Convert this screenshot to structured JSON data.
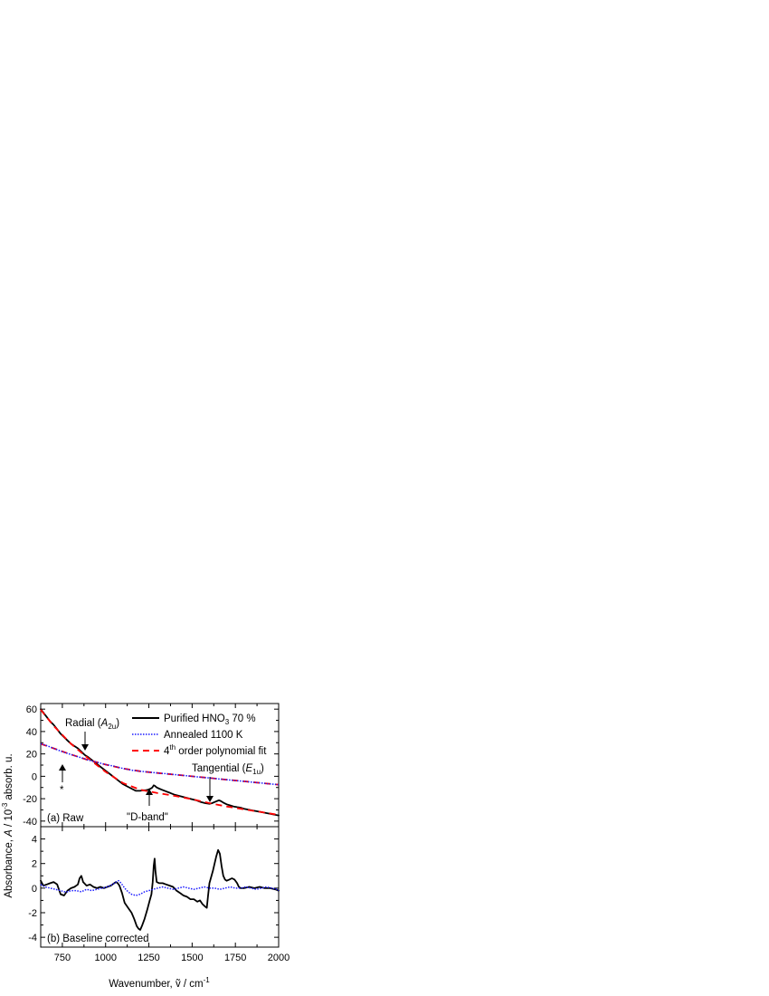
{
  "chart_data": [
    {
      "type": "line",
      "panel_label": "(a) Raw",
      "xlim": [
        625,
        2000
      ],
      "ylim": [
        -45,
        65
      ],
      "xticks": [
        750,
        1000,
        1250,
        1500,
        1750,
        2000
      ],
      "yticks": [
        -40,
        -20,
        0,
        20,
        40,
        60
      ],
      "legend_placement": "top-right",
      "series": [
        {
          "name": "Purified HNO₃ 70 %",
          "style": "solid",
          "color": "#000000",
          "x": [
            625,
            650,
            680,
            700,
            720,
            740,
            760,
            780,
            800,
            820,
            840,
            860,
            880,
            900,
            925,
            950,
            975,
            1000,
            1025,
            1050,
            1075,
            1100,
            1125,
            1150,
            1175,
            1200,
            1215,
            1230,
            1245,
            1260,
            1270,
            1278,
            1285,
            1295,
            1310,
            1325,
            1350,
            1375,
            1400,
            1425,
            1450,
            1475,
            1500,
            1525,
            1550,
            1575,
            1600,
            1615,
            1630,
            1645,
            1655,
            1665,
            1680,
            1700,
            1720,
            1740,
            1760,
            1780,
            1800,
            1850,
            1900,
            1950,
            2000
          ],
          "y": [
            60,
            55,
            49,
            46,
            42,
            38,
            35,
            32,
            29,
            27,
            25,
            22,
            19,
            17,
            14,
            11,
            8,
            5,
            2,
            -1,
            -4,
            -7,
            -9,
            -11,
            -13,
            -13,
            -12.5,
            -12.5,
            -12,
            -11,
            -10,
            -8,
            -8.5,
            -10,
            -11,
            -12,
            -13.5,
            -15,
            -16.5,
            -17.5,
            -18.5,
            -19.5,
            -20.5,
            -21.5,
            -23,
            -24,
            -24.5,
            -24,
            -23,
            -22,
            -21.5,
            -22,
            -23.5,
            -25,
            -26,
            -27,
            -27.5,
            -28,
            -29,
            -30.5,
            -32,
            -33.5,
            -35
          ]
        },
        {
          "name": "Annealed 1100 K",
          "style": "dotted",
          "color": "#1a1aff",
          "x": [
            625,
            650,
            700,
            750,
            800,
            850,
            900,
            950,
            1000,
            1050,
            1075,
            1100,
            1150,
            1200,
            1250,
            1300,
            1350,
            1400,
            1450,
            1500,
            1550,
            1600,
            1650,
            1700,
            1750,
            1800,
            1850,
            1900,
            1950,
            2000
          ],
          "y": [
            29,
            28,
            25,
            22,
            19.5,
            17,
            14.5,
            12.5,
            10.5,
            9,
            8,
            7,
            5.5,
            4.5,
            3.8,
            3,
            2.3,
            1.5,
            0.8,
            0,
            -0.8,
            -1.5,
            -2.3,
            -3,
            -3.8,
            -4.5,
            -5.3,
            -6,
            -6.8,
            -7.5
          ]
        },
        {
          "name": "4th order polynomial fit",
          "style": "dashed",
          "color": "#ff0000",
          "x": [
            625,
            700,
            800,
            900,
            1000,
            1100,
            1200,
            1300,
            1400,
            1500,
            1600,
            1700,
            1800,
            1900,
            2000
          ],
          "y": [
            59.5,
            45,
            29,
            16,
            4,
            -6,
            -12,
            -15,
            -17.5,
            -20.5,
            -24,
            -27,
            -29.5,
            -32,
            -34.5
          ]
        },
        {
          "name": "4th order polynomial fit",
          "style": "dashed",
          "color": "#ff0000",
          "x": [
            625,
            700,
            800,
            900,
            1000,
            1100,
            1200,
            1300,
            1400,
            1500,
            1600,
            1700,
            1800,
            1900,
            2000
          ],
          "y": [
            29,
            25,
            19.5,
            14.5,
            10.5,
            7,
            4.5,
            3,
            1.5,
            0,
            -1.5,
            -3,
            -4.5,
            -6,
            -7.5
          ]
        }
      ],
      "annotations": [
        {
          "text": "Radial (",
          "italic": "A",
          "sub": "2u",
          "close": ")",
          "arrow_x": 855,
          "arrow_y": 24
        },
        {
          "text": "*",
          "arrow_x": 740,
          "arrow_y": 36
        },
        {
          "text": "\"D-band\"",
          "arrow_x": 1250,
          "arrow_y": -11
        },
        {
          "text": "Tangential (",
          "italic": "E",
          "sub": "1u",
          "close": ")",
          "arrow_x": 1610,
          "arrow_y": -22
        }
      ]
    },
    {
      "type": "line",
      "panel_label": "(b) Baseline corrected",
      "xlim": [
        625,
        2000
      ],
      "ylim": [
        -4.8,
        5.0
      ],
      "xticks": [
        750,
        1000,
        1250,
        1500,
        1750,
        2000
      ],
      "yticks": [
        -4,
        -2,
        0,
        2,
        4
      ],
      "series": [
        {
          "name": "Purified HNO₃ 70 %",
          "style": "solid",
          "color": "#000000",
          "x": [
            625,
            640,
            660,
            680,
            700,
            720,
            740,
            760,
            780,
            800,
            820,
            840,
            850,
            860,
            870,
            890,
            910,
            930,
            950,
            970,
            990,
            1010,
            1030,
            1050,
            1060,
            1070,
            1080,
            1095,
            1110,
            1130,
            1150,
            1165,
            1180,
            1190,
            1200,
            1212,
            1225,
            1240,
            1255,
            1265,
            1272,
            1278,
            1283,
            1288,
            1295,
            1310,
            1330,
            1350,
            1370,
            1390,
            1410,
            1430,
            1450,
            1470,
            1490,
            1510,
            1530,
            1545,
            1560,
            1575,
            1585,
            1592,
            1600,
            1610,
            1620,
            1630,
            1640,
            1650,
            1660,
            1670,
            1680,
            1690,
            1700,
            1715,
            1730,
            1745,
            1760,
            1770,
            1780,
            1800,
            1830,
            1860,
            1890,
            1920,
            1950,
            1980,
            2000
          ],
          "y": [
            0.6,
            0.2,
            0.3,
            0.4,
            0.5,
            0.3,
            -0.5,
            -0.6,
            -0.2,
            0.0,
            0.1,
            0.3,
            0.8,
            1.0,
            0.5,
            0.2,
            0.3,
            0.1,
            0.0,
            0.1,
            0.0,
            0.1,
            0.2,
            0.4,
            0.5,
            0.4,
            0.2,
            -0.4,
            -1.2,
            -1.6,
            -2.0,
            -2.5,
            -3.1,
            -3.3,
            -3.4,
            -3.0,
            -2.5,
            -1.8,
            -1.0,
            -0.5,
            0.5,
            1.8,
            2.4,
            1.4,
            0.5,
            0.4,
            0.4,
            0.3,
            0.2,
            0.1,
            -0.2,
            -0.4,
            -0.6,
            -0.7,
            -0.9,
            -0.9,
            -1.1,
            -1.0,
            -1.3,
            -1.5,
            -1.6,
            -0.6,
            0.4,
            0.9,
            1.4,
            2.0,
            2.6,
            3.1,
            2.8,
            1.8,
            1.0,
            0.7,
            0.6,
            0.7,
            0.8,
            0.7,
            0.4,
            0.1,
            0.0,
            0.0,
            0.1,
            0.0,
            0.1,
            0.0,
            0.0,
            -0.1,
            -0.2
          ]
        },
        {
          "name": "Annealed 1100 K",
          "style": "dotted",
          "color": "#1a1aff",
          "x": [
            625,
            650,
            680,
            710,
            740,
            760,
            780,
            800,
            830,
            860,
            890,
            920,
            950,
            980,
            1010,
            1040,
            1060,
            1075,
            1090,
            1110,
            1130,
            1150,
            1175,
            1200,
            1225,
            1250,
            1275,
            1300,
            1330,
            1360,
            1390,
            1420,
            1450,
            1480,
            1510,
            1540,
            1570,
            1600,
            1630,
            1660,
            1690,
            1720,
            1750,
            1780,
            1810,
            1840,
            1870,
            1900,
            1930,
            1960,
            1990,
            2000
          ],
          "y": [
            0.3,
            0.1,
            0.0,
            -0.1,
            -0.2,
            -0.3,
            -0.3,
            -0.2,
            -0.2,
            -0.3,
            -0.1,
            -0.2,
            -0.1,
            0.0,
            0.1,
            0.3,
            0.5,
            0.6,
            0.4,
            0.0,
            -0.3,
            -0.5,
            -0.6,
            -0.5,
            -0.3,
            -0.2,
            -0.1,
            0.0,
            0.1,
            0.0,
            -0.1,
            0.0,
            0.1,
            0.0,
            -0.1,
            0.0,
            0.1,
            0.0,
            0.0,
            -0.1,
            0.0,
            0.1,
            0.0,
            0.0,
            0.1,
            0.0,
            -0.1,
            0.0,
            0.1,
            0.0,
            -0.1,
            -0.2
          ]
        }
      ]
    }
  ],
  "axes": {
    "ylabel_main": "Absorbance, ",
    "ylabel_italic": "A",
    "ylabel_mid": " / 10",
    "ylabel_sup": "-3",
    "ylabel_end": " absorb. u.",
    "xlabel_main": "Wavenumber, ",
    "xlabel_symbol": "ṽ",
    "xlabel_mid": " / cm",
    "xlabel_sup": "-1"
  },
  "legend": {
    "item1_main": "Purified HNO",
    "item1_sub": "3",
    "item1_end": " 70 %",
    "item2": "Annealed 1100 K",
    "item3_main": "4",
    "item3_sup": "th",
    "item3_end": " order polynomial fit"
  },
  "annotation_labels": {
    "radial_main": "Radial (",
    "radial_italic": "A",
    "radial_sub": "2u",
    "radial_close": ")",
    "star": "*",
    "dband": "\"D-band\"",
    "tangential_main": "Tangential (",
    "tangential_italic": "E",
    "tangential_sub": "1u",
    "tangential_close": ")"
  }
}
